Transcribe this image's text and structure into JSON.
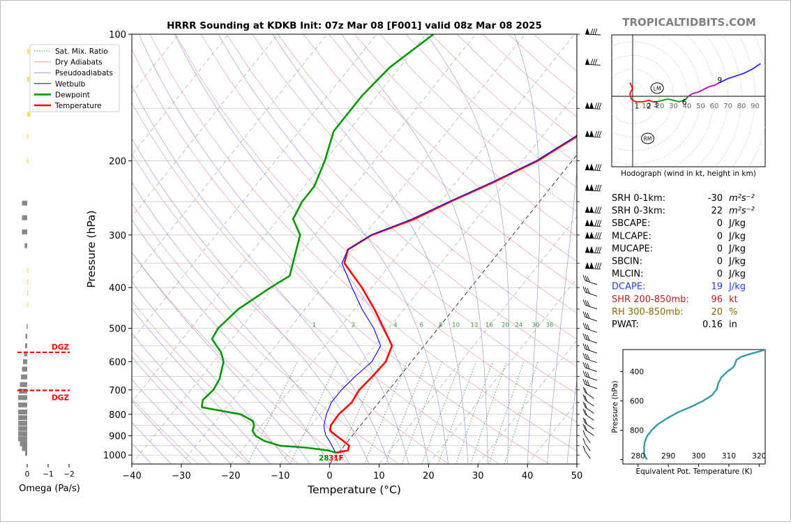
{
  "chart_data": [
    {
      "type": "line",
      "title": "HRRR Sounding at KDKB Init: 07z Mar 08 [F001] valid 08z Mar 08 2025",
      "watermark": "TROPICALTIDBITS.COM",
      "xlabel": "Temperature (°C)",
      "ylabel": "Pressure (hPa)",
      "xlim": [
        -40,
        50
      ],
      "ylim": [
        1050,
        100
      ],
      "y_scale": "log",
      "x_ticks": [
        "−40",
        "−30",
        "−20",
        "−10",
        "0",
        "10",
        "20",
        "30",
        "40",
        "50"
      ],
      "x_tick_values": [
        -40,
        -30,
        -20,
        -10,
        0,
        10,
        20,
        30,
        40,
        50
      ],
      "y_ticks": [
        "100",
        "200",
        "300",
        "400",
        "500",
        "600",
        "700",
        "800",
        "900",
        "1000"
      ],
      "y_tick_values": [
        100,
        200,
        300,
        400,
        500,
        600,
        700,
        800,
        900,
        1000
      ],
      "legend_position": "top-left",
      "legend": [
        {
          "label": "Sat. Mix. Ratio",
          "color": "#2e8b2e",
          "style": "dotted"
        },
        {
          "label": "Dry Adiabats",
          "color": "#e8a0a0",
          "style": "solid"
        },
        {
          "label": "Pseudoadiabats",
          "color": "#9a9ae0",
          "style": "solid"
        },
        {
          "label": "Wetbulb",
          "color": "#0000ff",
          "style": "solid"
        },
        {
          "label": "Dewpoint",
          "color": "#009900",
          "style": "solid"
        },
        {
          "label": "Temperature",
          "color": "#ff0000",
          "style": "solid"
        }
      ],
      "mixing_ratio_labels": [
        "1",
        "2",
        "4",
        "6",
        "8",
        "10",
        "13",
        "16",
        "20",
        "24",
        "30",
        "36"
      ],
      "surface_label": "28",
      "surface_label_2": "31F",
      "series": [
        {
          "name": "Temperature",
          "color": "#ff0000",
          "p": [
            987,
            975,
            950,
            925,
            900,
            875,
            850,
            800,
            750,
            700,
            650,
            600,
            550,
            500,
            450,
            400,
            350,
            325,
            300,
            275,
            250,
            225,
            200,
            175,
            150,
            125,
            100
          ],
          "t": [
            -0.5,
            1.5,
            1,
            -1,
            -3.2,
            -5.3,
            -6,
            -6.2,
            -5.5,
            -6,
            -5.5,
            -5.2,
            -6.5,
            -11,
            -16,
            -22,
            -29.5,
            -31,
            -28.5,
            -22.5,
            -18,
            -12.5,
            -7,
            -3,
            -2,
            0.5,
            2
          ]
        },
        {
          "name": "Wetbulb",
          "color": "#0000ff",
          "p": [
            987,
            960,
            925,
            900,
            875,
            850,
            800,
            750,
            700,
            650,
            600,
            550,
            500,
            450,
            400,
            350,
            325,
            300,
            275,
            250,
            225,
            200,
            175,
            150,
            125,
            100
          ],
          "t": [
            -0.6,
            -2,
            -3.8,
            -5.3,
            -6.4,
            -7.4,
            -8.7,
            -9.6,
            -9.6,
            -9,
            -8,
            -8.8,
            -13,
            -18.5,
            -24,
            -30,
            -31,
            -28.7,
            -23,
            -18.3,
            -12.8,
            -7.3,
            -3.3,
            -2.2,
            0.3,
            1.8
          ]
        },
        {
          "name": "Dewpoint",
          "color": "#009900",
          "p": [
            987,
            975,
            960,
            950,
            925,
            900,
            875,
            850,
            830,
            800,
            780,
            770,
            740,
            700,
            660,
            600,
            570,
            530,
            500,
            450,
            400,
            375,
            340,
            300,
            275,
            250,
            230,
            200,
            170,
            140,
            120,
            100
          ],
          "t": [
            -0.5,
            -2.5,
            -7.5,
            -13,
            -17,
            -19.5,
            -21,
            -21.5,
            -22.5,
            -26,
            -32,
            -35,
            -36,
            -35.5,
            -36,
            -38,
            -40,
            -44,
            -44.5,
            -43.5,
            -40.5,
            -38.5,
            -40.5,
            -43,
            -47,
            -48,
            -48,
            -50,
            -53,
            -53,
            -52,
            -48.5
          ]
        }
      ],
      "wind_barbs": [
        "100",
        "118",
        "150",
        "175",
        "210",
        "235",
        "265",
        "285",
        "305",
        "330",
        "360",
        "385",
        "410",
        "440",
        "470",
        "500",
        "530",
        "560",
        "590",
        "620",
        "650",
        "680",
        "710",
        "740",
        "770",
        "800",
        "840",
        "870",
        "900",
        "940",
        "980"
      ]
    },
    {
      "type": "bar",
      "xlabel": "Omega (Pa/s)",
      "x_ticks": [
        "0",
        "−1",
        "−2"
      ],
      "x_tick_values": [
        0,
        -1,
        -2
      ],
      "dgz_label": "DGZ",
      "dgz_top_p": 570,
      "dgz_bottom_p": 702,
      "bars": [
        {
          "p": 110,
          "v": -0.1,
          "color": "#ffdd55"
        },
        {
          "p": 128,
          "v": -0.1,
          "color": "#ffdd55"
        },
        {
          "p": 155,
          "v": -0.15,
          "color": "#ffdd55"
        },
        {
          "p": 175,
          "v": -0.05,
          "color": "#ffdd55"
        },
        {
          "p": 200,
          "v": -0.02,
          "color": "#ffdd55"
        },
        {
          "p": 252,
          "v": 0.25,
          "color": "#888888"
        },
        {
          "p": 273,
          "v": 0.25,
          "color": "#888888"
        },
        {
          "p": 295,
          "v": 0.25,
          "color": "#888888"
        },
        {
          "p": 318,
          "v": 0.12,
          "color": "#888888"
        },
        {
          "p": 365,
          "v": -0.02,
          "color": "#ffdd55"
        },
        {
          "p": 387,
          "v": -0.05,
          "color": "#ffdd55"
        },
        {
          "p": 412,
          "v": -0.02,
          "color": "#ffdd55"
        },
        {
          "p": 440,
          "v": -0.03,
          "color": "#ffdd55"
        },
        {
          "p": 495,
          "v": 0.03,
          "color": "#888888"
        },
        {
          "p": 522,
          "v": 0.08,
          "color": "#888888"
        },
        {
          "p": 550,
          "v": 0.1,
          "color": "#888888"
        },
        {
          "p": 575,
          "v": 0.15,
          "color": "#888888"
        },
        {
          "p": 600,
          "v": 0.2,
          "color": "#888888"
        },
        {
          "p": 625,
          "v": 0.25,
          "color": "#888888"
        },
        {
          "p": 652,
          "v": 0.3,
          "color": "#888888"
        },
        {
          "p": 680,
          "v": 0.35,
          "color": "#888888"
        },
        {
          "p": 705,
          "v": 0.4,
          "color": "#888888"
        },
        {
          "p": 730,
          "v": 0.43,
          "color": "#888888"
        },
        {
          "p": 760,
          "v": 0.43,
          "color": "#888888"
        },
        {
          "p": 790,
          "v": 0.43,
          "color": "#888888"
        },
        {
          "p": 815,
          "v": 0.43,
          "color": "#888888"
        },
        {
          "p": 840,
          "v": 0.43,
          "color": "#888888"
        },
        {
          "p": 865,
          "v": 0.43,
          "color": "#888888"
        },
        {
          "p": 890,
          "v": 0.43,
          "color": "#888888"
        },
        {
          "p": 915,
          "v": 0.43,
          "color": "#888888"
        },
        {
          "p": 940,
          "v": 0.35,
          "color": "#888888"
        },
        {
          "p": 965,
          "v": 0.25,
          "color": "#888888"
        },
        {
          "p": 990,
          "v": 0.1,
          "color": "#888888"
        }
      ]
    },
    {
      "type": "line",
      "caption": "Hodograph (wind in kt, height in km)",
      "ring_labels": [
        "10",
        "20",
        "30",
        "40",
        "50",
        "60",
        "70",
        "80",
        "90"
      ],
      "storm_motion_labels": [
        "LM",
        "RM"
      ],
      "height_labels": [
        "1",
        "2",
        "3",
        "6",
        "9"
      ],
      "segments": [
        {
          "color": "#ff0000",
          "points": [
            [
              -2,
              10
            ],
            [
              0,
              6
            ],
            [
              -2,
              2
            ],
            [
              -1,
              -2
            ],
            [
              2,
              -4
            ],
            [
              8,
              -4
            ],
            [
              12,
              -3
            ],
            [
              15,
              -4
            ],
            [
              18,
              -4
            ]
          ]
        },
        {
          "color": "#009900",
          "points": [
            [
              18,
              -4
            ],
            [
              22,
              -3
            ],
            [
              26,
              -2
            ],
            [
              30,
              -3
            ],
            [
              34,
              -4
            ],
            [
              38,
              -3
            ],
            [
              41,
              0
            ]
          ]
        },
        {
          "color": "#bb00bb",
          "points": [
            [
              41,
              0
            ],
            [
              44,
              2
            ],
            [
              48,
              3
            ],
            [
              52,
              5
            ],
            [
              56,
              7
            ],
            [
              60,
              8
            ],
            [
              64,
              10
            ]
          ]
        },
        {
          "color": "#2222ff",
          "points": [
            [
              64,
              10
            ],
            [
              70,
              13
            ],
            [
              76,
              15
            ],
            [
              82,
              17
            ],
            [
              88,
              20
            ],
            [
              94,
              24
            ]
          ]
        }
      ]
    },
    {
      "type": "line",
      "ylabel": "Pressure (hPa)",
      "xlabel": "Equivalent Pot. Temperature (K)",
      "xlim": [
        275,
        322
      ],
      "ylim": [
        1030,
        250
      ],
      "x_ticks": [
        "280",
        "290",
        "300",
        "310",
        "320"
      ],
      "x_tick_values": [
        280,
        290,
        300,
        310,
        320
      ],
      "y_ticks": [
        "400",
        "600",
        "800"
      ],
      "y_tick_values": [
        400,
        600,
        800
      ],
      "color": "#3399aa",
      "p": [
        1000,
        985,
        960,
        920,
        880,
        840,
        800,
        760,
        720,
        680,
        640,
        600,
        560,
        520,
        480,
        440,
        400,
        370,
        350,
        320,
        300,
        280,
        260,
        250
      ],
      "theta_e": [
        283,
        282.5,
        282,
        282,
        282.2,
        283,
        284.5,
        286.5,
        289.5,
        293,
        297.5,
        301.5,
        304.5,
        306,
        306.5,
        307.5,
        309.5,
        311.5,
        312,
        312.5,
        314,
        317,
        320.5,
        322
      ]
    }
  ],
  "stats": [
    {
      "label": "SRH 0-1km:",
      "value": "-30",
      "unit": "m²s⁻²",
      "color": "#000000"
    },
    {
      "label": "SRH 0-3km:",
      "value": "22",
      "unit": "m²s⁻²",
      "color": "#000000"
    },
    {
      "label": "SBCAPE:",
      "value": "0",
      "unit": "J/kg",
      "color": "#000000"
    },
    {
      "label": "MLCAPE:",
      "value": "0",
      "unit": "J/kg",
      "color": "#000000"
    },
    {
      "label": "MUCAPE:",
      "value": "0",
      "unit": "J/kg",
      "color": "#000000"
    },
    {
      "label": "SBCIN:",
      "value": "0",
      "unit": "J/kg",
      "color": "#000000"
    },
    {
      "label": "MLCIN:",
      "value": "0",
      "unit": "J/kg",
      "color": "#000000"
    },
    {
      "label": "DCAPE:",
      "value": "19",
      "unit": "J/kg",
      "color": "#1f3fdf"
    },
    {
      "label": "SHR 200-850mb:",
      "value": "96",
      "unit": "kt",
      "color": "#b22222"
    },
    {
      "label": "RH 300-850mb:",
      "value": "20",
      "unit": "%",
      "color": "#8b6508"
    },
    {
      "label": "PWAT:",
      "value": "0.16",
      "unit": "in",
      "color": "#000000"
    }
  ]
}
